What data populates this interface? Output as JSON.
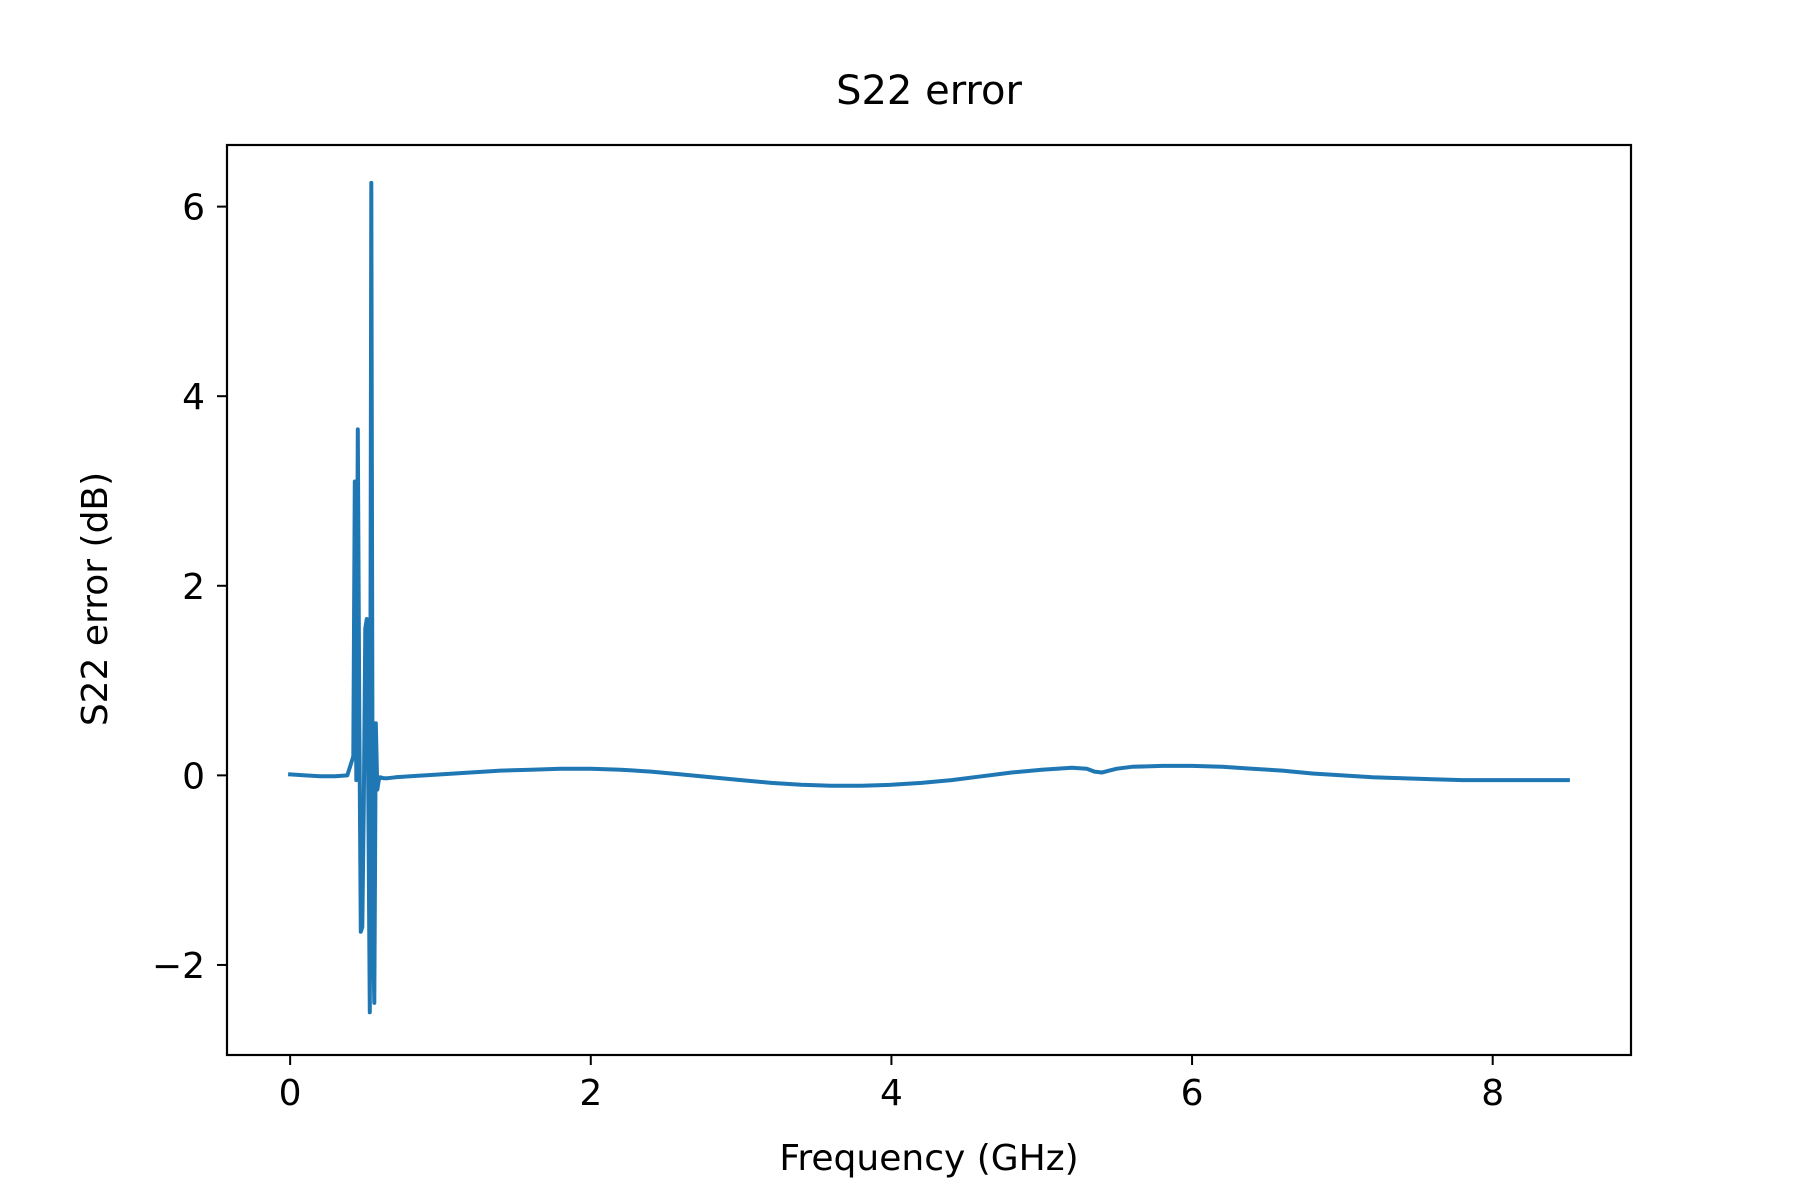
{
  "chart_data": {
    "type": "line",
    "title": "S22 error",
    "xlabel": "Frequency (GHz)",
    "ylabel": "S22 error (dB)",
    "xlim": [
      -0.42,
      8.92
    ],
    "ylim": [
      -2.95,
      6.65
    ],
    "xticks": [
      0,
      2,
      4,
      6,
      8
    ],
    "xtick_labels": [
      "0",
      "2",
      "4",
      "6",
      "8"
    ],
    "yticks": [
      -2,
      0,
      2,
      4,
      6
    ],
    "ytick_labels": [
      "−2",
      "0",
      "2",
      "4",
      "6"
    ],
    "grid": false,
    "colors": {
      "line": "#1f77b4",
      "axes": "#000000"
    },
    "series": [
      {
        "x": [
          0.0,
          0.1,
          0.2,
          0.3,
          0.38,
          0.42,
          0.43,
          0.44,
          0.45,
          0.46,
          0.47,
          0.48,
          0.49,
          0.5,
          0.51,
          0.52,
          0.53,
          0.54,
          0.55,
          0.56,
          0.57,
          0.58,
          0.59,
          0.6,
          0.62,
          0.65,
          0.7,
          0.8,
          1.0,
          1.2,
          1.4,
          1.6,
          1.8,
          2.0,
          2.2,
          2.4,
          2.6,
          2.8,
          3.0,
          3.2,
          3.4,
          3.6,
          3.8,
          4.0,
          4.2,
          4.4,
          4.6,
          4.8,
          5.0,
          5.2,
          5.3,
          5.35,
          5.4,
          5.45,
          5.5,
          5.6,
          5.8,
          6.0,
          6.2,
          6.4,
          6.6,
          6.8,
          7.0,
          7.2,
          7.4,
          7.6,
          7.8,
          8.0,
          8.2,
          8.4,
          8.5
        ],
        "y": [
          0.01,
          0.0,
          -0.01,
          -0.01,
          0.0,
          0.2,
          3.1,
          -0.05,
          3.65,
          0.6,
          -1.65,
          -1.6,
          -0.3,
          1.55,
          1.65,
          -0.2,
          -2.5,
          6.25,
          -1.5,
          -2.4,
          0.55,
          -0.15,
          -0.05,
          -0.02,
          -0.03,
          -0.03,
          -0.02,
          -0.01,
          0.01,
          0.03,
          0.05,
          0.06,
          0.07,
          0.07,
          0.06,
          0.04,
          0.01,
          -0.02,
          -0.05,
          -0.08,
          -0.1,
          -0.11,
          -0.11,
          -0.1,
          -0.08,
          -0.05,
          -0.01,
          0.03,
          0.06,
          0.08,
          0.07,
          0.04,
          0.03,
          0.05,
          0.07,
          0.09,
          0.1,
          0.1,
          0.09,
          0.07,
          0.05,
          0.02,
          0.0,
          -0.02,
          -0.03,
          -0.04,
          -0.05,
          -0.05,
          -0.05,
          -0.05,
          -0.05
        ]
      }
    ]
  }
}
